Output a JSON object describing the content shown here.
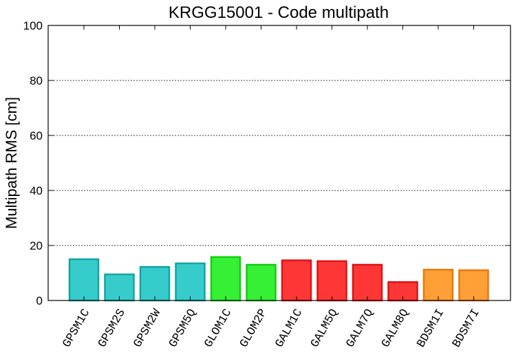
{
  "chart_data": {
    "type": "bar",
    "title": "KRGG15001 - Code multipath",
    "xlabel": "",
    "ylabel": "Multipath RMS [cm]",
    "ylim": [
      0,
      100
    ],
    "yticks": [
      0,
      20,
      40,
      60,
      80,
      100
    ],
    "grid": true,
    "categories": [
      "GPSM1C",
      "GPSM2S",
      "GPSM2W",
      "GPSM5Q",
      "GLOM1C",
      "GLOM2P",
      "GALM1C",
      "GALM5Q",
      "GALM7Q",
      "GALM8Q",
      "BDSM1I",
      "BDSM7I"
    ],
    "values": [
      15.0,
      9.5,
      12.2,
      13.5,
      15.8,
      13.0,
      14.6,
      14.3,
      13.0,
      6.7,
      11.2,
      11.0
    ],
    "bar_fill": [
      "#36cccc",
      "#36cccc",
      "#36cccc",
      "#36cccc",
      "#36f036",
      "#36f036",
      "#ff3636",
      "#ff3636",
      "#ff3636",
      "#ff3636",
      "#ff9f36",
      "#ff9f36"
    ],
    "bar_stroke": [
      "#13a4a4",
      "#13a4a4",
      "#13a4a4",
      "#13a4a4",
      "#14cc14",
      "#14cc14",
      "#dd1313",
      "#dd1313",
      "#dd1313",
      "#dd1313",
      "#e8780f",
      "#e8780f"
    ]
  }
}
